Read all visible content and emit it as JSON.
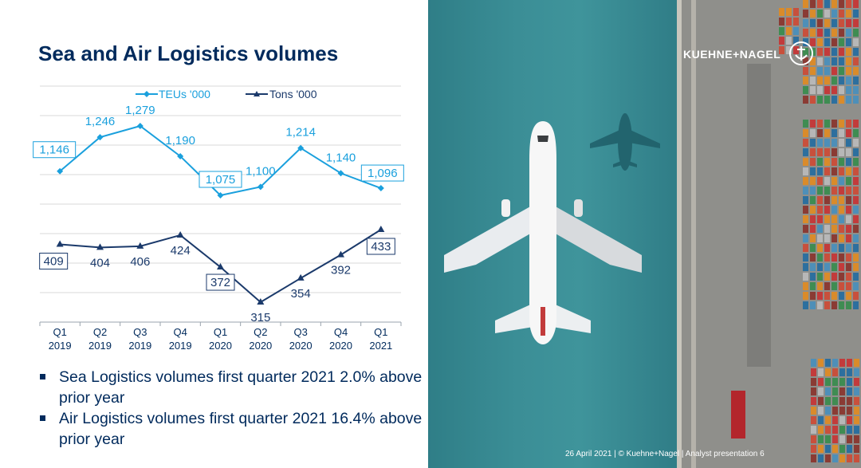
{
  "title": "Sea and Air Logistics volumes",
  "legend": {
    "teus": "TEUs '000",
    "tons": "Tons '000"
  },
  "chart_data": {
    "type": "line",
    "categories": [
      [
        "Q1",
        "2019"
      ],
      [
        "Q2",
        "2019"
      ],
      [
        "Q3",
        "2019"
      ],
      [
        "Q4",
        "2019"
      ],
      [
        "Q1",
        "2020"
      ],
      [
        "Q2",
        "2020"
      ],
      [
        "Q3",
        "2020"
      ],
      [
        "Q4",
        "2020"
      ],
      [
        "Q1",
        "2021"
      ]
    ],
    "series": [
      {
        "name": "TEUs '000",
        "color": "#1aa0dd",
        "values": [
          1146,
          1246,
          1279,
          1190,
          1075,
          1100,
          1214,
          1140,
          1096
        ],
        "labels": [
          "1,146",
          "1,246",
          "1,279",
          "1,190",
          "1,075",
          "1,100",
          "1,214",
          "1,140",
          "1,096"
        ],
        "boxed": [
          true,
          false,
          false,
          false,
          true,
          false,
          false,
          false,
          true
        ]
      },
      {
        "name": "Tons '000",
        "color": "#1b3a6b",
        "values": [
          409,
          404,
          406,
          424,
          372,
          315,
          354,
          392,
          433
        ],
        "labels": [
          "409",
          "404",
          "406",
          "424",
          "372",
          "315",
          "354",
          "392",
          "433"
        ],
        "boxed": [
          true,
          false,
          false,
          false,
          true,
          false,
          false,
          false,
          true
        ]
      }
    ],
    "grid": true,
    "legend_position": "top"
  },
  "bullets": [
    "Sea Logistics volumes first quarter 2021 2.0% above prior year",
    "Air Logistics volumes first quarter 2021 16.4% above prior year"
  ],
  "brand": "KUEHNE+NAGEL",
  "footer": "26 April 2021   |   © Kuehne+Nagel   |   Analyst presentation   6"
}
